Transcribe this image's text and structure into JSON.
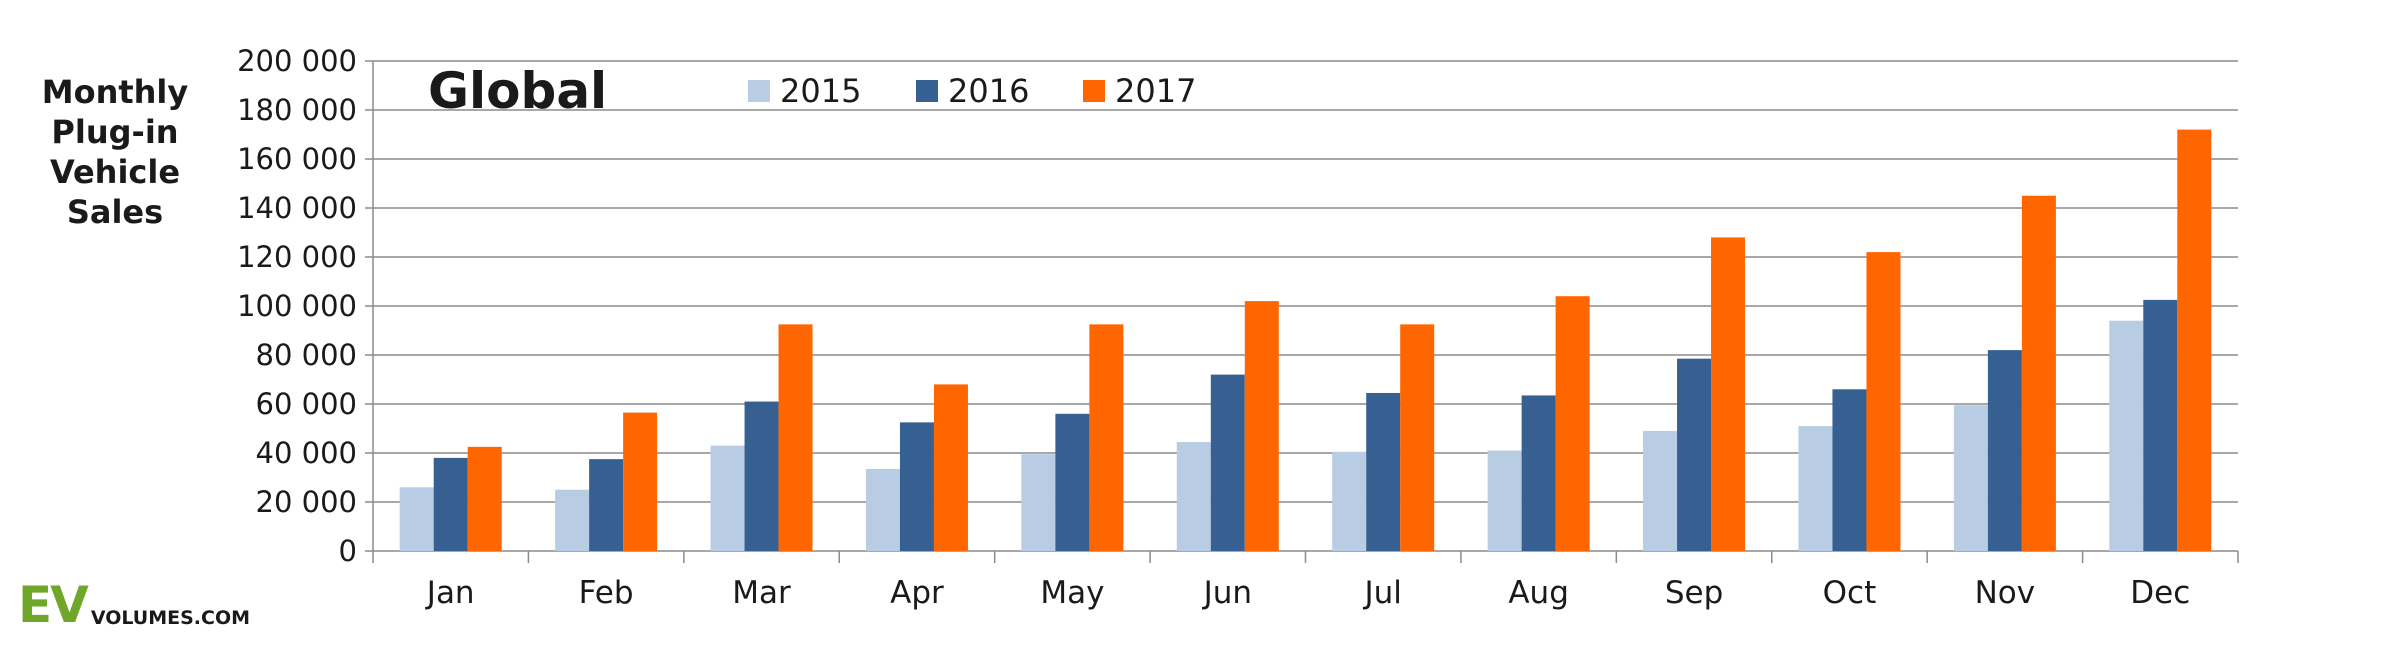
{
  "chart_data": {
    "type": "bar",
    "title": "Global",
    "ylabel_lines": [
      "Monthly",
      "Plug-in",
      "Vehicle",
      "Sales"
    ],
    "xlabel": "",
    "categories": [
      "Jan",
      "Feb",
      "Mar",
      "Apr",
      "May",
      "Jun",
      "Jul",
      "Aug",
      "Sep",
      "Oct",
      "Nov",
      "Dec"
    ],
    "series": [
      {
        "name": "2015",
        "color": "#b8cce4",
        "values": [
          26000,
          25000,
          43000,
          33500,
          39500,
          44500,
          40500,
          41000,
          49000,
          51000,
          59500,
          94000
        ]
      },
      {
        "name": "2016",
        "color": "#376092",
        "values": [
          38000,
          37500,
          61000,
          52500,
          56000,
          72000,
          64500,
          63500,
          78500,
          66000,
          82000,
          102500
        ]
      },
      {
        "name": "2017",
        "color": "#ff6600",
        "values": [
          42500,
          56500,
          92500,
          68000,
          92500,
          102000,
          92500,
          104000,
          128000,
          122000,
          145000,
          172000
        ]
      }
    ],
    "ylim": [
      0,
      200000
    ],
    "yticks": [
      0,
      20000,
      40000,
      60000,
      80000,
      100000,
      120000,
      140000,
      160000,
      180000,
      200000
    ],
    "ytick_labels": [
      "0",
      "20 000",
      "40 000",
      "60 000",
      "80 000",
      "100 000",
      "120 000",
      "140 000",
      "160 000",
      "180 000",
      "200 000"
    ],
    "grid": true,
    "legend_position": "top-center"
  },
  "logo": {
    "ev": "EV",
    "rest": "VOLUMES.COM"
  }
}
